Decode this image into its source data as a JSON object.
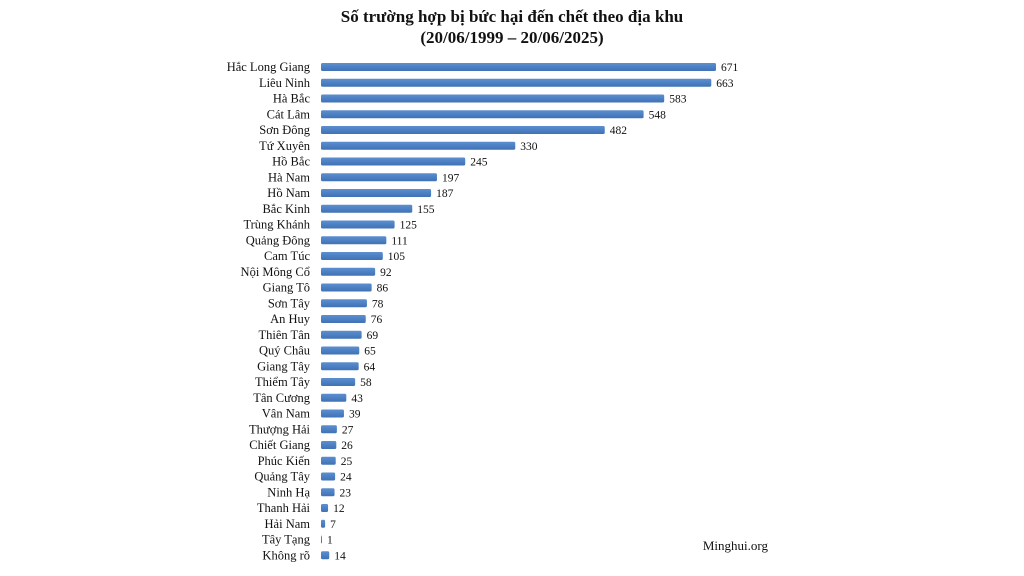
{
  "chart_data": {
    "type": "bar",
    "orientation": "horizontal",
    "title": "Số trường hợp bị bức hại đến chết theo địa khu",
    "subtitle": "(20/06/1999 – 20/06/2025)",
    "categories": [
      "Hắc Long Giang",
      "Liêu Ninh",
      "Hà Bắc",
      "Cát Lâm",
      "Sơn Đông",
      "Tứ Xuyên",
      "Hồ Bắc",
      "Hà Nam",
      "Hồ Nam",
      "Bắc Kinh",
      "Trùng Khánh",
      "Quảng Đông",
      "Cam Túc",
      "Nội Mông Cổ",
      "Giang Tô",
      "Sơn Tây",
      "An Huy",
      "Thiên Tân",
      "Quý Châu",
      "Giang Tây",
      "Thiểm Tây",
      "Tân Cương",
      "Vân Nam",
      "Thượng Hải",
      "Chiết Giang",
      "Phúc Kiến",
      "Quảng Tây",
      "Ninh Hạ",
      "Thanh Hải",
      "Hải Nam",
      "Tây Tạng",
      "Không rõ"
    ],
    "values": [
      671,
      663,
      583,
      548,
      482,
      330,
      245,
      197,
      187,
      155,
      125,
      111,
      105,
      92,
      86,
      78,
      76,
      69,
      65,
      64,
      58,
      43,
      39,
      27,
      26,
      25,
      24,
      23,
      12,
      7,
      1,
      14
    ],
    "xlim": [
      0,
      700
    ],
    "grid": false,
    "legend": "none",
    "data_labels": true,
    "bar_color": "#5b8fd0",
    "bar_color_dark": "#3f72b5"
  },
  "credit": "Minghui.org"
}
